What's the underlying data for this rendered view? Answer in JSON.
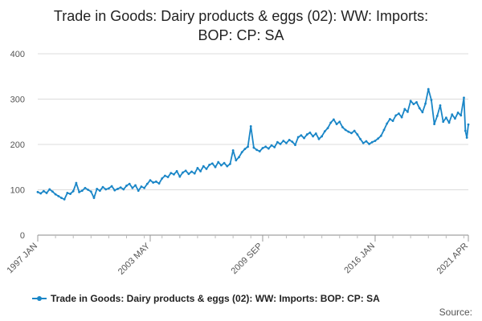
{
  "chart_data": {
    "type": "line",
    "title_lines": [
      "Trade in Goods: Dairy products & eggs (02): WW: Imports:",
      "BOP: CP: SA"
    ],
    "xlabel": "",
    "ylabel": "",
    "ylim": [
      0,
      400
    ],
    "y_ticks": [
      0,
      100,
      200,
      300,
      400
    ],
    "x_ticks": [
      "1997 JAN",
      "2003 MAY",
      "2009 SEP",
      "2016 JAN",
      "2021 APR"
    ],
    "grid": true,
    "legend_position": "bottom",
    "series": [
      {
        "name": "Trade in Goods: Dairy products & eggs (02): WW: Imports: BOP: CP: SA",
        "color": "#1a86c7",
        "points": [
          [
            "1997-01",
            95
          ],
          [
            "1997-03",
            92
          ],
          [
            "1997-05",
            97
          ],
          [
            "1997-07",
            93
          ],
          [
            "1997-09",
            101
          ],
          [
            "1997-11",
            96
          ],
          [
            "1998-01",
            90
          ],
          [
            "1998-03",
            86
          ],
          [
            "1998-05",
            82
          ],
          [
            "1998-07",
            79
          ],
          [
            "1998-09",
            93
          ],
          [
            "1998-11",
            91
          ],
          [
            "1999-01",
            97
          ],
          [
            "1999-03",
            115
          ],
          [
            "1999-05",
            95
          ],
          [
            "1999-07",
            98
          ],
          [
            "1999-09",
            104
          ],
          [
            "1999-11",
            100
          ],
          [
            "2000-01",
            96
          ],
          [
            "2000-03",
            82
          ],
          [
            "2000-05",
            102
          ],
          [
            "2000-07",
            98
          ],
          [
            "2000-09",
            106
          ],
          [
            "2000-11",
            101
          ],
          [
            "2001-01",
            103
          ],
          [
            "2001-03",
            108
          ],
          [
            "2001-05",
            99
          ],
          [
            "2001-07",
            102
          ],
          [
            "2001-09",
            105
          ],
          [
            "2001-11",
            101
          ],
          [
            "2002-01",
            109
          ],
          [
            "2002-03",
            113
          ],
          [
            "2002-05",
            104
          ],
          [
            "2002-07",
            110
          ],
          [
            "2002-09",
            98
          ],
          [
            "2002-11",
            107
          ],
          [
            "2003-01",
            104
          ],
          [
            "2003-03",
            113
          ],
          [
            "2003-05",
            121
          ],
          [
            "2003-07",
            116
          ],
          [
            "2003-09",
            118
          ],
          [
            "2003-11",
            114
          ],
          [
            "2004-01",
            125
          ],
          [
            "2004-03",
            131
          ],
          [
            "2004-05",
            128
          ],
          [
            "2004-07",
            137
          ],
          [
            "2004-09",
            134
          ],
          [
            "2004-11",
            141
          ],
          [
            "2005-01",
            129
          ],
          [
            "2005-03",
            138
          ],
          [
            "2005-05",
            142
          ],
          [
            "2005-07",
            135
          ],
          [
            "2005-09",
            140
          ],
          [
            "2005-11",
            136
          ],
          [
            "2006-01",
            148
          ],
          [
            "2006-03",
            141
          ],
          [
            "2006-05",
            152
          ],
          [
            "2006-07",
            146
          ],
          [
            "2006-09",
            155
          ],
          [
            "2006-11",
            158
          ],
          [
            "2007-01",
            150
          ],
          [
            "2007-03",
            161
          ],
          [
            "2007-05",
            154
          ],
          [
            "2007-07",
            159
          ],
          [
            "2007-09",
            152
          ],
          [
            "2007-11",
            157
          ],
          [
            "2008-01",
            187
          ],
          [
            "2008-03",
            165
          ],
          [
            "2008-05",
            172
          ],
          [
            "2008-07",
            183
          ],
          [
            "2008-09",
            190
          ],
          [
            "2008-11",
            195
          ],
          [
            "2009-01",
            240
          ],
          [
            "2009-03",
            193
          ],
          [
            "2009-05",
            188
          ],
          [
            "2009-07",
            185
          ],
          [
            "2009-09",
            192
          ],
          [
            "2009-11",
            195
          ],
          [
            "2010-01",
            191
          ],
          [
            "2010-03",
            198
          ],
          [
            "2010-05",
            194
          ],
          [
            "2010-07",
            205
          ],
          [
            "2010-09",
            201
          ],
          [
            "2010-11",
            208
          ],
          [
            "2011-01",
            203
          ],
          [
            "2011-03",
            210
          ],
          [
            "2011-05",
            206
          ],
          [
            "2011-07",
            199
          ],
          [
            "2011-09",
            216
          ],
          [
            "2011-11",
            220
          ],
          [
            "2012-01",
            214
          ],
          [
            "2012-03",
            222
          ],
          [
            "2012-05",
            226
          ],
          [
            "2012-07",
            218
          ],
          [
            "2012-09",
            224
          ],
          [
            "2012-11",
            212
          ],
          [
            "2013-01",
            218
          ],
          [
            "2013-03",
            229
          ],
          [
            "2013-05",
            236
          ],
          [
            "2013-07",
            248
          ],
          [
            "2013-09",
            255
          ],
          [
            "2013-11",
            245
          ],
          [
            "2014-01",
            250
          ],
          [
            "2014-03",
            238
          ],
          [
            "2014-05",
            232
          ],
          [
            "2014-07",
            228
          ],
          [
            "2014-09",
            225
          ],
          [
            "2014-11",
            230
          ],
          [
            "2015-01",
            222
          ],
          [
            "2015-03",
            212
          ],
          [
            "2015-05",
            203
          ],
          [
            "2015-07",
            207
          ],
          [
            "2015-09",
            201
          ],
          [
            "2015-11",
            205
          ],
          [
            "2016-01",
            208
          ],
          [
            "2016-03",
            213
          ],
          [
            "2016-05",
            219
          ],
          [
            "2016-07",
            232
          ],
          [
            "2016-09",
            246
          ],
          [
            "2016-11",
            256
          ],
          [
            "2017-01",
            252
          ],
          [
            "2017-03",
            264
          ],
          [
            "2017-05",
            268
          ],
          [
            "2017-07",
            260
          ],
          [
            "2017-09",
            278
          ],
          [
            "2017-11",
            272
          ],
          [
            "2018-01",
            296
          ],
          [
            "2018-03",
            289
          ],
          [
            "2018-05",
            293
          ],
          [
            "2018-07",
            280
          ],
          [
            "2018-09",
            271
          ],
          [
            "2018-11",
            290
          ],
          [
            "2019-01",
            322
          ],
          [
            "2019-03",
            298
          ],
          [
            "2019-05",
            245
          ],
          [
            "2019-07",
            263
          ],
          [
            "2019-09",
            286
          ],
          [
            "2019-11",
            250
          ],
          [
            "2020-01",
            259
          ],
          [
            "2020-03",
            248
          ],
          [
            "2020-05",
            266
          ],
          [
            "2020-07",
            257
          ],
          [
            "2020-09",
            270
          ],
          [
            "2020-11",
            264
          ],
          [
            "2021-01",
            303
          ],
          [
            "2021-02",
            230
          ],
          [
            "2021-03",
            215
          ],
          [
            "2021-04",
            244
          ]
        ]
      }
    ]
  },
  "source_label": "Source:"
}
